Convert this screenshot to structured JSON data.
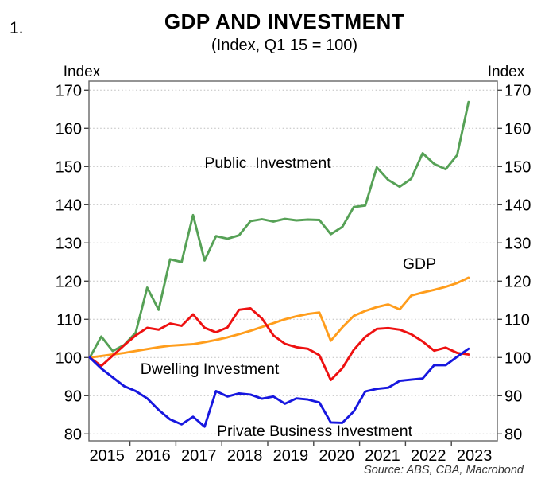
{
  "figure_number": "1.",
  "title": "GDP AND INVESTMENT",
  "subtitle": "(Index, Q1 15 = 100)",
  "source": "Source: ABS, CBA, Macrobond",
  "axis": {
    "left_unit": "Index",
    "right_unit": "Index",
    "y_ticks": [
      80,
      90,
      100,
      110,
      120,
      130,
      140,
      150,
      160,
      170
    ],
    "x_labels": [
      "2015",
      "2016",
      "2017",
      "2018",
      "2019",
      "2020",
      "2021",
      "2022",
      "2023"
    ]
  },
  "series_labels": {
    "public": "Public  Investment",
    "gdp": "GDP",
    "dwelling": "Dwelling Investment",
    "private": "Private Business Investment"
  },
  "colors": {
    "public_investment": "#56A156",
    "gdp": "#FF9D1C",
    "dwelling_investment": "#EE1111",
    "private_business_investment": "#1717DF",
    "grid": "#bdbdbd",
    "frame": "#666666",
    "tick": "#444444"
  },
  "chart_data": {
    "type": "line",
    "title": "GDP AND INVESTMENT",
    "subtitle": "(Index, Q1 15 = 100)",
    "x_frequency": "quarterly",
    "x_start": "Q1 2015",
    "x_end": "Q2 2023",
    "xlabel": "",
    "ylabel": "Index",
    "ylim": [
      80,
      170
    ],
    "grid": "horizontal-dotted",
    "legend_position": "inline-labels",
    "series": [
      {
        "name": "Public Investment",
        "color": "#56A156",
        "values": [
          100,
          105.5,
          101.7,
          103.3,
          106.5,
          118.3,
          112.5,
          125.7,
          125.0,
          137.3,
          125.4,
          131.8,
          131.1,
          132.0,
          135.7,
          136.2,
          135.6,
          136.3,
          135.9,
          136.1,
          136.0,
          132.3,
          134.2,
          139.4,
          139.8,
          149.8,
          146.5,
          144.7,
          146.8,
          153.5,
          150.7,
          149.3,
          153.0,
          166.9
        ]
      },
      {
        "name": "GDP",
        "color": "#FF9D1C",
        "values": [
          100,
          100.4,
          100.8,
          101.2,
          101.7,
          102.2,
          102.7,
          103.1,
          103.3,
          103.5,
          104.0,
          104.6,
          105.3,
          106.1,
          107.0,
          108.0,
          109.0,
          110.0,
          110.8,
          111.4,
          111.8,
          104.4,
          107.9,
          110.9,
          112.2,
          113.2,
          113.9,
          112.6,
          116.2,
          117.0,
          117.7,
          118.5,
          119.5,
          120.9
        ]
      },
      {
        "name": "Dwelling Investment",
        "color": "#EE1111",
        "values": [
          100,
          97.8,
          100.5,
          103.2,
          105.8,
          107.8,
          107.3,
          108.9,
          108.3,
          111.3,
          107.8,
          106.6,
          107.9,
          112.5,
          112.9,
          110.2,
          105.8,
          103.6,
          102.7,
          102.3,
          100.6,
          94.1,
          97.2,
          102.0,
          105.4,
          107.5,
          107.7,
          107.3,
          106.1,
          104.2,
          101.8,
          102.6,
          101.2,
          100.8
        ]
      },
      {
        "name": "Private Business Investment",
        "color": "#1717DF",
        "values": [
          100,
          97.1,
          94.8,
          92.5,
          91.2,
          89.3,
          86.3,
          83.8,
          82.5,
          84.5,
          81.9,
          91.2,
          89.8,
          90.6,
          90.3,
          89.2,
          89.8,
          87.9,
          89.3,
          89.0,
          88.2,
          83.0,
          82.9,
          85.9,
          91.1,
          91.8,
          92.1,
          93.9,
          94.2,
          94.5,
          98.0,
          98.0,
          100.2,
          102.3
        ]
      }
    ]
  }
}
